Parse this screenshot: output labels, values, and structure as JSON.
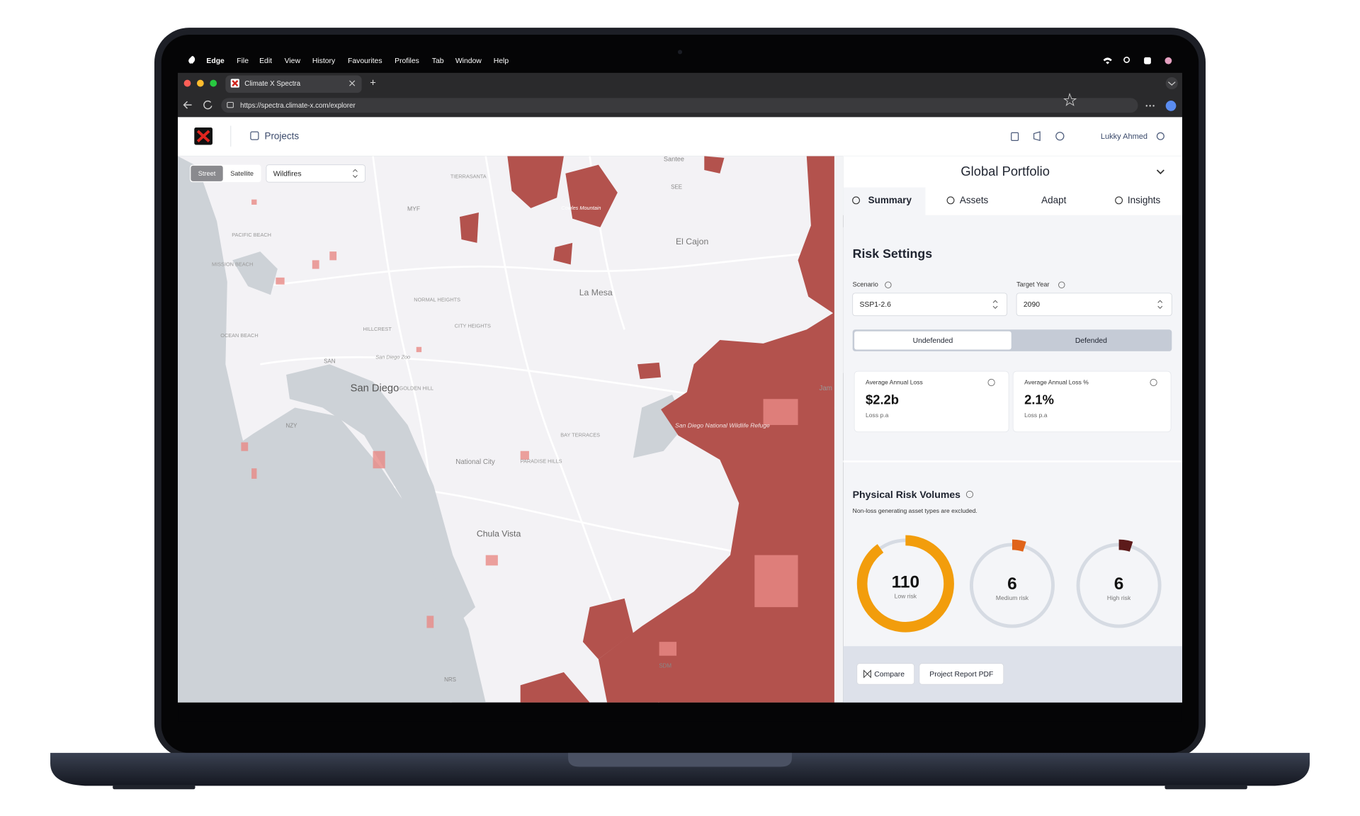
{
  "menu_bar": {
    "app": "Edge",
    "items": [
      "File",
      "Edit",
      "View",
      "History",
      "Favourites",
      "Profiles",
      "Tab",
      "Window",
      "Help"
    ]
  },
  "browser": {
    "tab_title": "Climate X Spectra",
    "new_tab": "+",
    "url": "https://spectra.climate-x.com/explorer"
  },
  "header": {
    "nav": "Projects",
    "user": "Lukky Ahmed"
  },
  "map": {
    "toggle": [
      "Street",
      "Satellite"
    ],
    "layer": "Wildfires",
    "labels": [
      "Santee",
      "TIERRASANTA",
      "MYF",
      "SEE",
      "Cowles Mountain",
      "El Cajon",
      "PACIFIC BEACH",
      "MISSION BEACH",
      "La Mesa",
      "NORMAL HEIGHTS",
      "CITY HEIGHTS",
      "HILLCREST",
      "OCEAN BEACH",
      "SAN",
      "San Diego Zoo",
      "San Diego",
      "GOLDEN HILL",
      "NZY",
      "BAY TERRACES",
      "San Diego National Wildlife Refuge",
      "National City",
      "PARADISE HILLS",
      "Chula Vista",
      "SDM",
      "NRS",
      "Jam"
    ]
  },
  "panel": {
    "title": "Global Portfolio",
    "tabs": [
      "Summary",
      "Assets",
      "Adapt",
      "Insights"
    ],
    "risk_settings": {
      "title": "Risk Settings",
      "scenario_label": "Scenario",
      "scenario": "SSP1-2.6",
      "year_label": "Target Year",
      "year": "2090",
      "toggle": [
        "Undefended",
        "Defended"
      ]
    },
    "cards": [
      {
        "title": "Average Annual Loss",
        "value": "$2.2b",
        "note": "Loss p.a"
      },
      {
        "title": "Average Annual Loss %",
        "value": "2.1%",
        "note": "Loss p.a"
      }
    ],
    "volumes": {
      "title": "Physical Risk Volumes",
      "subtitle": "Non-loss generating asset types are excluded.",
      "gauges": [
        {
          "value": 110,
          "label": "Low risk",
          "color": "#f29d0c"
        },
        {
          "value": 6,
          "label": "Medium risk",
          "color": "#e0641a"
        },
        {
          "value": 6,
          "label": "High risk",
          "color": "#5c1a1a"
        }
      ]
    },
    "buttons": [
      "Compare",
      "Project Report PDF"
    ]
  }
}
